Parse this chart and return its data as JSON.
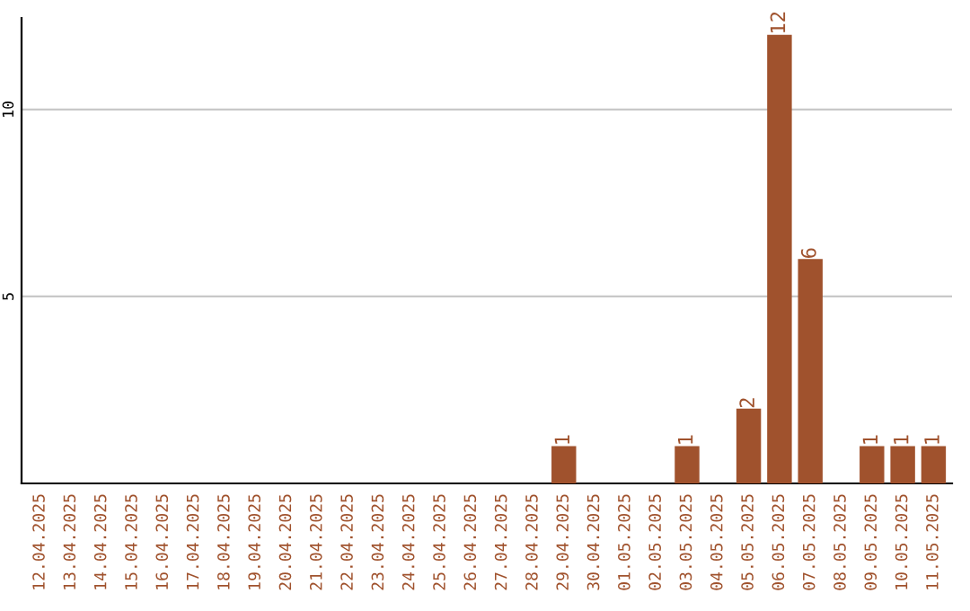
{
  "chart_data": {
    "type": "bar",
    "categories": [
      "12.04.2025",
      "13.04.2025",
      "14.04.2025",
      "15.04.2025",
      "16.04.2025",
      "17.04.2025",
      "18.04.2025",
      "19.04.2025",
      "20.04.2025",
      "21.04.2025",
      "22.04.2025",
      "23.04.2025",
      "24.04.2025",
      "25.04.2025",
      "26.04.2025",
      "27.04.2025",
      "28.04.2025",
      "29.04.2025",
      "30.04.2025",
      "01.05.2025",
      "02.05.2025",
      "03.05.2025",
      "04.05.2025",
      "05.05.2025",
      "06.05.2025",
      "07.05.2025",
      "08.05.2025",
      "09.05.2025",
      "10.05.2025",
      "11.05.2025"
    ],
    "values": [
      0,
      0,
      0,
      0,
      0,
      0,
      0,
      0,
      0,
      0,
      0,
      0,
      0,
      0,
      0,
      0,
      0,
      1,
      0,
      0,
      0,
      1,
      0,
      2,
      12,
      6,
      0,
      1,
      1,
      1
    ],
    "value_labels": [
      null,
      null,
      null,
      null,
      null,
      null,
      null,
      null,
      null,
      null,
      null,
      null,
      null,
      null,
      null,
      null,
      null,
      "1",
      null,
      null,
      null,
      "1",
      null,
      "2",
      "12",
      "6",
      null,
      "1",
      "1",
      "1"
    ],
    "color": "#a0522d",
    "ylim": [
      0,
      12.45
    ],
    "yticks": [
      5,
      10
    ],
    "grid": "y"
  }
}
